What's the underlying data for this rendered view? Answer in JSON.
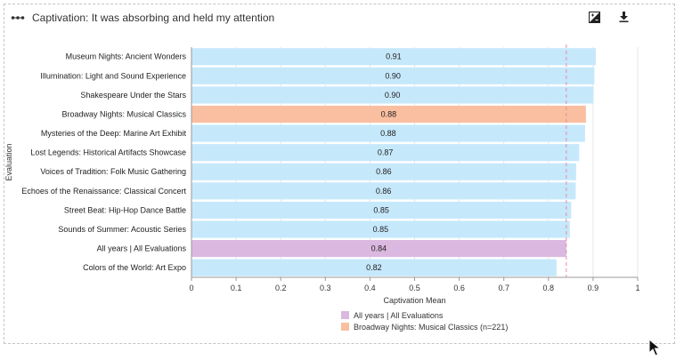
{
  "header": {
    "title": "Captivation: It was absorbing and held my attention",
    "icons": [
      "chart-style-icon",
      "download-icon"
    ]
  },
  "colors": {
    "default_bar": "#c6e8fb",
    "highlight_bar": "#f9bfa0",
    "overall_bar": "#dbb8df",
    "reference_line": "#e88aa8",
    "grid": "#e6e6e6"
  },
  "legend": {
    "items": [
      {
        "label": "All years | All Evaluations",
        "color": "#dbb8df"
      },
      {
        "label": "Broadway Nights: Musical Classics (n=221)",
        "color": "#f9bfa0"
      }
    ]
  },
  "chart_data": {
    "type": "bar",
    "orientation": "horizontal",
    "xlabel": "Captivation Mean",
    "ylabel": "Evaluation",
    "xlim": [
      0,
      1
    ],
    "xticks": [
      "0",
      "0.1",
      "0.2",
      "0.3",
      "0.4",
      "0.5",
      "0.6",
      "0.7",
      "0.8",
      "0.9",
      "1"
    ],
    "categories": [
      "Museum Nights: Ancient Wonders",
      "Illumination: Light and Sound Experience",
      "Shakespeare Under the Stars",
      "Broadway Nights: Musical Classics",
      "Mysteries of the Deep: Marine Art Exhibit",
      "Lost Legends: Historical Artifacts Showcase",
      "Voices of Tradition: Folk Music Gathering",
      "Echoes of the Renaissance: Classical Concert",
      "Street Beat: Hip-Hop Dance Battle",
      "Sounds of Summer: Acoustic Series",
      "All years | All Evaluations",
      "Colors of the World: Art Expo"
    ],
    "values": [
      0.906,
      0.903,
      0.901,
      0.884,
      0.882,
      0.869,
      0.862,
      0.861,
      0.851,
      0.848,
      0.84,
      0.818
    ],
    "value_labels": [
      "0.91",
      "0.90",
      "0.90",
      "0.88",
      "0.88",
      "0.87",
      "0.86",
      "0.86",
      "0.85",
      "0.85",
      "0.84",
      "0.82"
    ],
    "bar_types": [
      "default",
      "default",
      "default",
      "highlight",
      "default",
      "default",
      "default",
      "default",
      "default",
      "default",
      "overall",
      "default"
    ],
    "reference_line": 0.84,
    "grid": true,
    "legend_position": "bottom"
  }
}
